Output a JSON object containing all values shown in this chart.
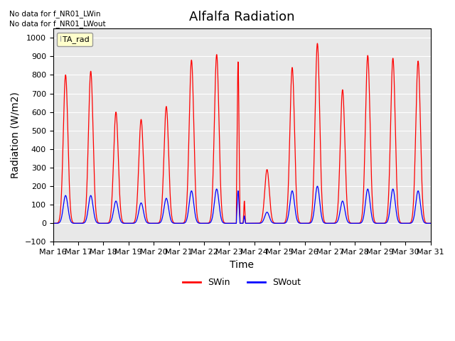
{
  "title": "Alfalfa Radiation",
  "ylabel": "Radiation (W/m2)",
  "xlabel": "Time",
  "ylim": [
    -100,
    1050
  ],
  "yticks": [
    -100,
    0,
    100,
    200,
    300,
    400,
    500,
    600,
    700,
    800,
    900,
    1000
  ],
  "xtick_labels": [
    "Mar 16",
    "Mar 17",
    "Mar 18",
    "Mar 19",
    "Mar 20",
    "Mar 21",
    "Mar 22",
    "Mar 23",
    "Mar 24",
    "Mar 25",
    "Mar 26",
    "Mar 27",
    "Mar 28",
    "Mar 29",
    "Mar 30",
    "Mar 31"
  ],
  "nodata_text1": "No data for f_NR01_LWin",
  "nodata_text2": "No data for f_NR01_LWout",
  "legend_label_box": "TA_rad",
  "legend_label1": "SWin",
  "legend_label2": "SWout",
  "color_swin": "#ff0000",
  "color_swout": "#0000ff",
  "background_color": "#e8e8e8",
  "grid_color": "#ffffff",
  "title_fontsize": 13,
  "axis_fontsize": 10,
  "days": 15,
  "swin_peaks": [
    800,
    820,
    600,
    560,
    630,
    880,
    910,
    870,
    290,
    840,
    970,
    720,
    905,
    890,
    875
  ],
  "swout_peaks": [
    150,
    150,
    120,
    110,
    135,
    175,
    185,
    175,
    60,
    175,
    200,
    120,
    185,
    185,
    175
  ],
  "cloudy_days": [
    7
  ]
}
